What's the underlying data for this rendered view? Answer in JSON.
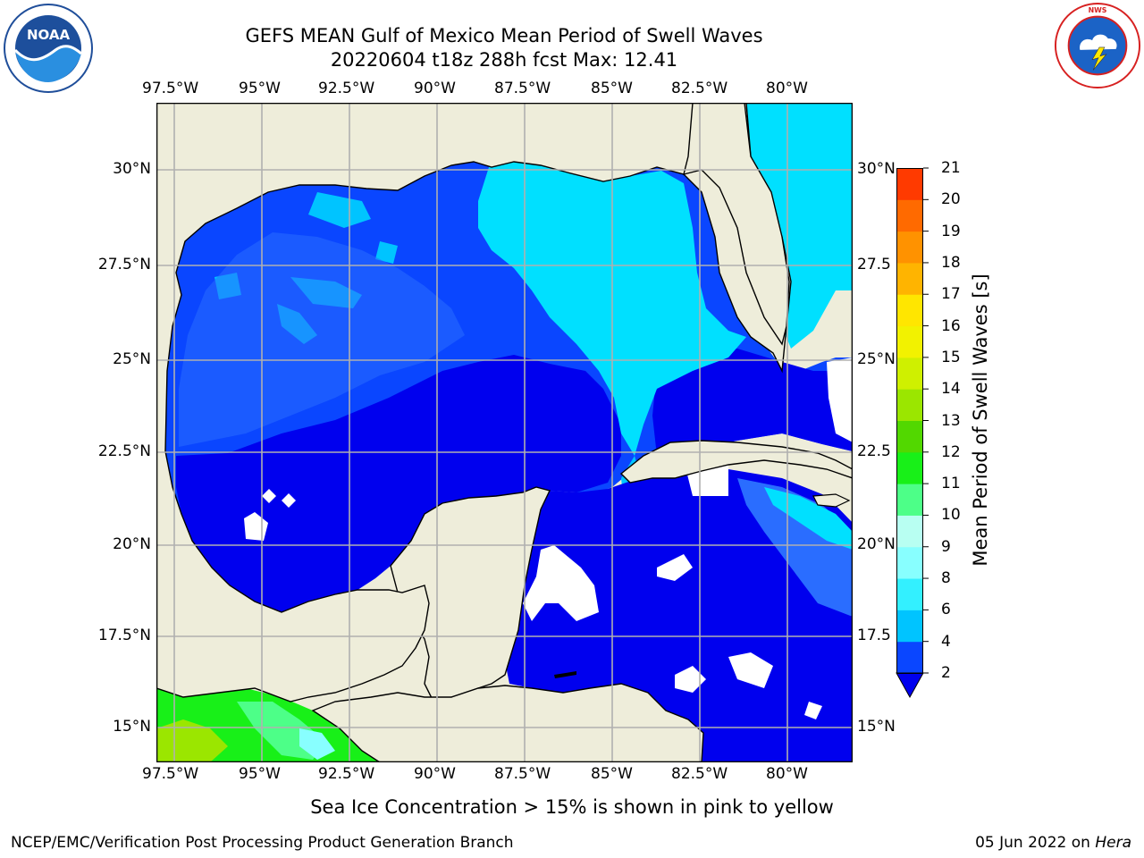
{
  "title": {
    "line1": "GEFS MEAN Gulf of Mexico Mean Period of Swell Waves",
    "line2": "20220604 t18z 288h fcst   Max: 12.41"
  },
  "logos": {
    "left": "NOAA",
    "left_ring_text": "NATIONAL OCEANIC AND ATMOSPHERIC ADMINISTRATION · U.S. DEPARTMENT OF COMMERCE",
    "right_ring_text": "NATIONAL WEATHER SERVICE"
  },
  "map": {
    "lon_labels": [
      "97.5°W",
      "95°W",
      "92.5°W",
      "90°W",
      "87.5°W",
      "85°W",
      "82.5°W",
      "80°W"
    ],
    "lat_labels_left": [
      "30°N",
      "27.5°N",
      "25°N",
      "22.5°N",
      "20°N",
      "17.5°N",
      "15°N"
    ],
    "lat_labels_right": [
      "30°N",
      "27.5",
      "25°N",
      "22.5",
      "20°N",
      "17.5",
      "15°N"
    ],
    "extent": {
      "lon": [
        -98.0,
        -79.2
      ],
      "lat": [
        14.2,
        31.8
      ]
    },
    "colors": {
      "land": "#eeedda",
      "no_data": "#ffffff",
      "grid": "#b0b0b0",
      "coast": "#000000"
    }
  },
  "colorbar": {
    "label": "Mean Period of Swell Waves [s]",
    "ticks": [
      "2",
      "4",
      "6",
      "8",
      "9",
      "10",
      "11",
      "12",
      "13",
      "14",
      "15",
      "16",
      "17",
      "18",
      "19",
      "20",
      "21"
    ],
    "colors": [
      "#0a46ff",
      "#00c4ff",
      "#33f0ff",
      "#88ffff",
      "#b8fff2",
      "#4dff88",
      "#18f018",
      "#52d800",
      "#9be600",
      "#cff000",
      "#f2f200",
      "#ffe600",
      "#ffb400",
      "#ff9200",
      "#ff6a00",
      "#ff3a00"
    ],
    "extend_color": "#0000ee"
  },
  "footer": {
    "ice_note": "Sea Ice Concentration > 15% is shown in pink to yellow",
    "left": "NCEP/EMC/Verification Post Processing Product Generation Branch",
    "right_date": "05 Jun 2022 on",
    "right_host": "Hera"
  }
}
